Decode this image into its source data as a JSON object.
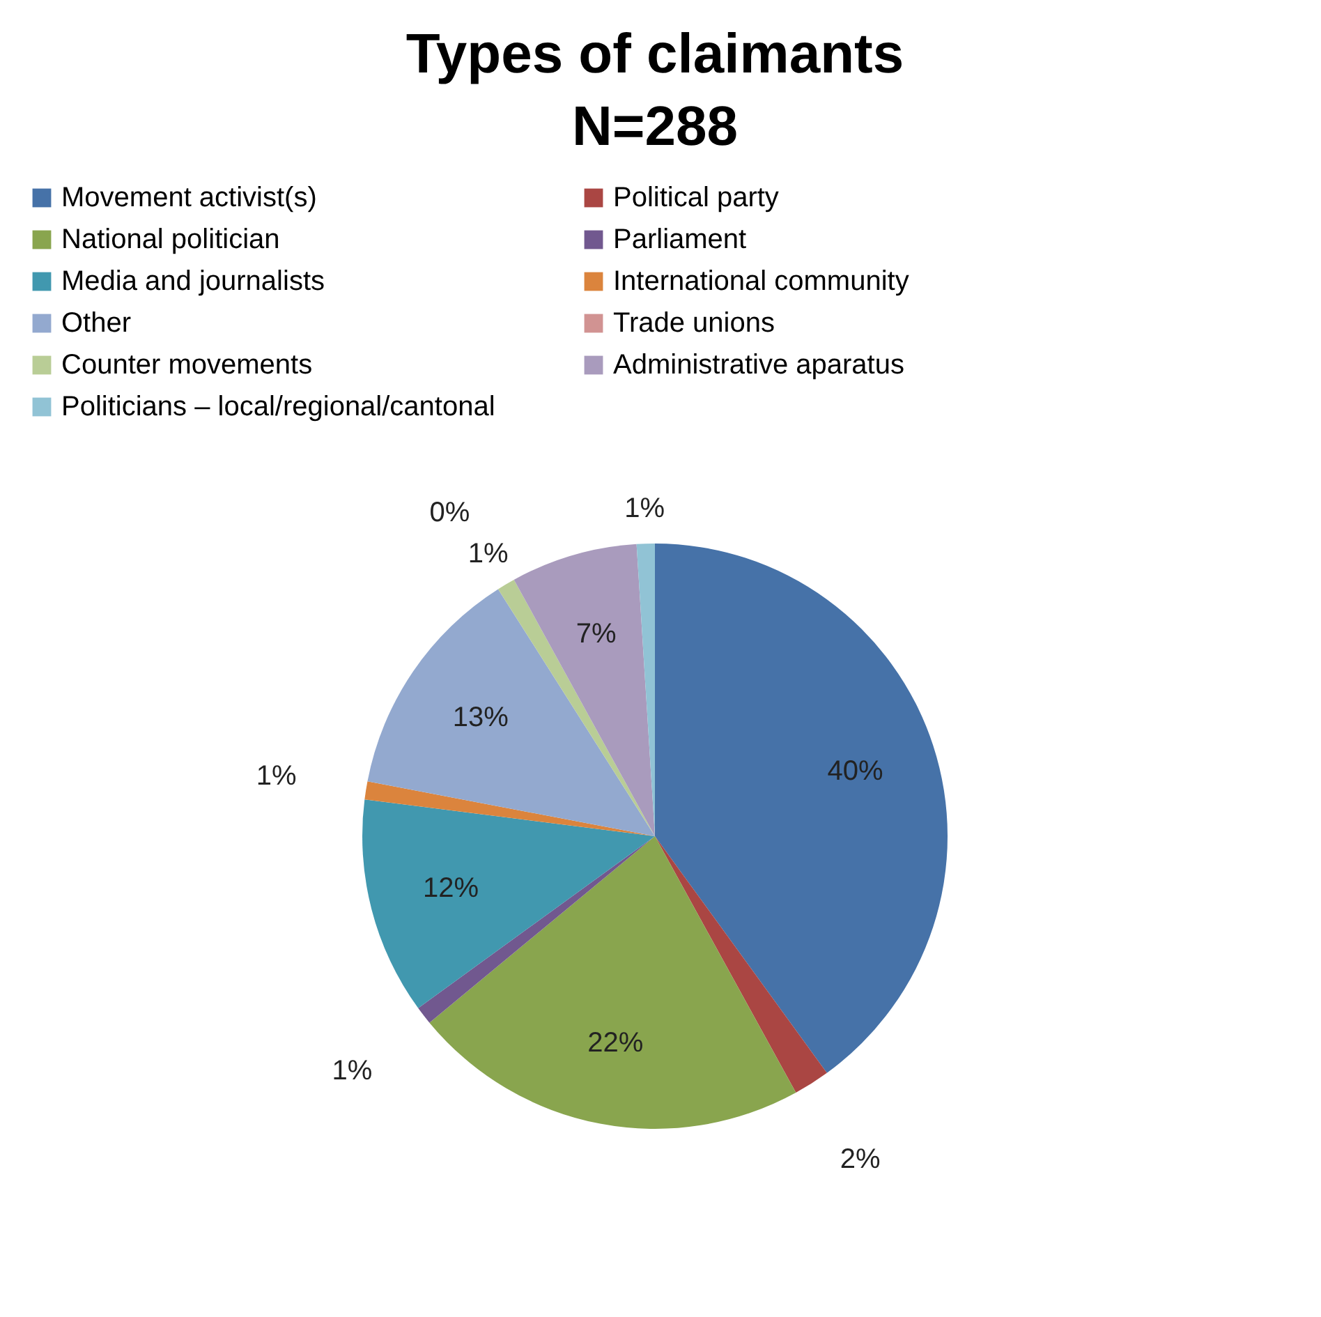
{
  "chart_data": {
    "type": "pie",
    "title": "Types of claimants\nN=288",
    "categories": [
      "Movement activist(s)",
      "Political party",
      "National politician",
      "Parliament",
      "Media and journalists",
      "International community",
      "Other",
      "Trade unions",
      "Counter movements",
      "Administrative aparatus",
      "Politicians – local/regional/cantonal"
    ],
    "values": [
      40,
      2,
      22,
      1,
      12,
      1,
      13,
      0,
      1,
      7,
      1
    ],
    "value_labels": [
      "40%",
      "2%",
      "22%",
      "1%",
      "12%",
      "1%",
      "13%",
      "0%",
      "1%",
      "7%",
      "1%"
    ],
    "colors": [
      "#4672a8",
      "#aa4643",
      "#89a54e",
      "#71588f",
      "#4198af",
      "#db843d",
      "#93a9cf",
      "#d19392",
      "#b9cd96",
      "#a99bbd",
      "#91c3d5"
    ],
    "legend": "top"
  }
}
